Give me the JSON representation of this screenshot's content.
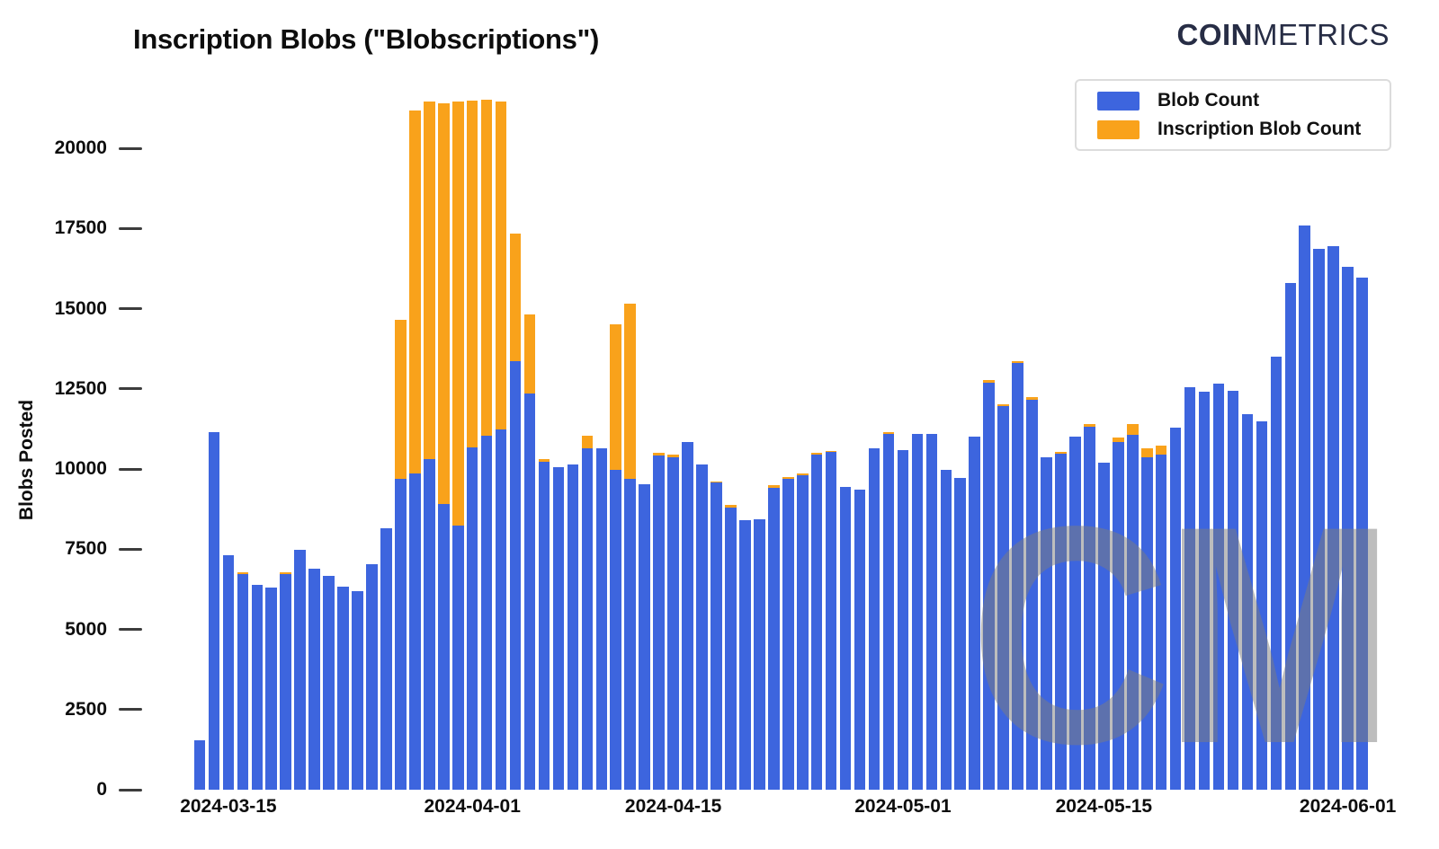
{
  "title": "Inscription Blobs (\"Blobscriptions\")",
  "logo": {
    "bold": "COIN",
    "light": "METRICS"
  },
  "watermark": "CM",
  "legend": [
    {
      "label": "Blob Count",
      "color": "#3D65DE"
    },
    {
      "label": "Inscription Blob Count",
      "color": "#F9A21B"
    }
  ],
  "chart_data": {
    "type": "bar",
    "stacked": true,
    "title": "Inscription Blobs (\"Blobscriptions\")",
    "xlabel": "",
    "ylabel": "Blobs Posted",
    "ylim": [
      0,
      22250
    ],
    "grid": false,
    "legend_position": "top-right",
    "yticks": [
      0,
      2500,
      5000,
      7500,
      10000,
      12500,
      15000,
      17500,
      20000
    ],
    "xtick_labels": [
      "2024-03-15",
      "2024-04-01",
      "2024-04-15",
      "2024-05-01",
      "2024-05-15",
      "2024-06-01"
    ],
    "dates": [
      "2024-03-13",
      "2024-03-14",
      "2024-03-15",
      "2024-03-16",
      "2024-03-17",
      "2024-03-18",
      "2024-03-19",
      "2024-03-20",
      "2024-03-21",
      "2024-03-22",
      "2024-03-23",
      "2024-03-24",
      "2024-03-25",
      "2024-03-26",
      "2024-03-27",
      "2024-03-28",
      "2024-03-29",
      "2024-03-30",
      "2024-03-31",
      "2024-04-01",
      "2024-04-02",
      "2024-04-03",
      "2024-04-04",
      "2024-04-05",
      "2024-04-06",
      "2024-04-07",
      "2024-04-08",
      "2024-04-09",
      "2024-04-10",
      "2024-04-11",
      "2024-04-12",
      "2024-04-13",
      "2024-04-14",
      "2024-04-15",
      "2024-04-16",
      "2024-04-17",
      "2024-04-18",
      "2024-04-19",
      "2024-04-20",
      "2024-04-21",
      "2024-04-22",
      "2024-04-23",
      "2024-04-24",
      "2024-04-25",
      "2024-04-26",
      "2024-04-27",
      "2024-04-28",
      "2024-04-29",
      "2024-04-30",
      "2024-05-01",
      "2024-05-02",
      "2024-05-03",
      "2024-05-04",
      "2024-05-05",
      "2024-05-06",
      "2024-05-07",
      "2024-05-08",
      "2024-05-09",
      "2024-05-10",
      "2024-05-11",
      "2024-05-12",
      "2024-05-13",
      "2024-05-14",
      "2024-05-15",
      "2024-05-16",
      "2024-05-17",
      "2024-05-18",
      "2024-05-19",
      "2024-05-20",
      "2024-05-21",
      "2024-05-22",
      "2024-05-23",
      "2024-05-24",
      "2024-05-25",
      "2024-05-26",
      "2024-05-27",
      "2024-05-28",
      "2024-05-29",
      "2024-05-30",
      "2024-05-31",
      "2024-06-01",
      "2024-06-02"
    ],
    "series": [
      {
        "name": "Blob Count",
        "color": "#3D65DE",
        "values": [
          1540,
          11150,
          7300,
          6720,
          6390,
          6300,
          6720,
          7480,
          6890,
          6660,
          6330,
          6190,
          7030,
          8150,
          9700,
          9850,
          10300,
          8900,
          8230,
          10670,
          11030,
          11230,
          13360,
          12350,
          10220,
          10050,
          10140,
          10650,
          10640,
          9970,
          9690,
          9520,
          10420,
          10360,
          10850,
          10150,
          9570,
          8790,
          8400,
          8430,
          9410,
          9690,
          9800,
          10450,
          10530,
          9450,
          9350,
          10650,
          11090,
          10580,
          11090,
          11090,
          9970,
          9720,
          11000,
          12680,
          11950,
          13300,
          12150,
          10360,
          10470,
          11000,
          11310,
          10190,
          10840,
          11060,
          10360,
          10440,
          11280,
          12540,
          12400,
          12660,
          12430,
          11700,
          11480,
          13500,
          15800,
          17580,
          16860,
          16960,
          16300,
          15960
        ]
      },
      {
        "name": "Inscription Blob Count",
        "color": "#F9A21B",
        "values": [
          0,
          0,
          0,
          60,
          0,
          0,
          60,
          0,
          0,
          0,
          0,
          0,
          0,
          0,
          4940,
          11320,
          11150,
          12500,
          13220,
          10810,
          10470,
          10220,
          3970,
          2460,
          80,
          0,
          0,
          380,
          0,
          4530,
          5460,
          0,
          80,
          80,
          0,
          0,
          30,
          90,
          0,
          0,
          80,
          50,
          50,
          60,
          30,
          0,
          0,
          0,
          60,
          0,
          0,
          0,
          0,
          0,
          0,
          90,
          80,
          60,
          90,
          0,
          60,
          0,
          90,
          0,
          140,
          340,
          280,
          280,
          0,
          0,
          0,
          0,
          0,
          0,
          0,
          0,
          0,
          0,
          0,
          0,
          0,
          0
        ]
      }
    ]
  }
}
